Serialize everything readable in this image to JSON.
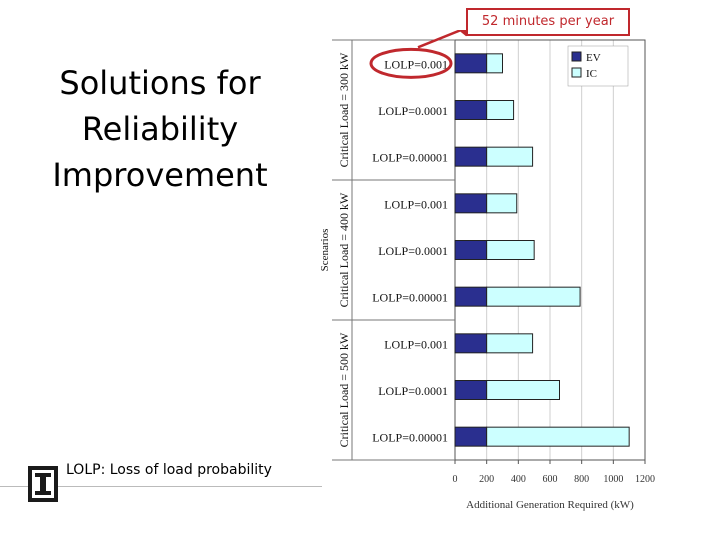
{
  "slide": {
    "title_lines": [
      "Solutions for",
      "Reliability",
      "Improvement"
    ],
    "footnote": "LOLP: Loss of load probability",
    "callout": "52 minutes per year",
    "colors": {
      "ev": "#2a2f8f",
      "ic": "#ccffff",
      "callout": "#c0282d"
    }
  },
  "chart_data": {
    "type": "bar",
    "orientation": "horizontal",
    "stacked": true,
    "xlabel": "Additional Generation Required (kW)",
    "ylabel": "Scenarios",
    "xlim": [
      0,
      1200
    ],
    "xticks": [
      0,
      200,
      400,
      600,
      800,
      1000,
      1200
    ],
    "legend": {
      "position": "top-right",
      "entries": [
        "EV",
        "IC"
      ]
    },
    "groups": [
      {
        "label": "Critical Load = 300 kW",
        "start": 0,
        "count": 3
      },
      {
        "label": "Critical Load = 400 kW",
        "start": 3,
        "count": 3
      },
      {
        "label": "Critical Load = 500 kW",
        "start": 6,
        "count": 3
      }
    ],
    "categories": [
      "LOLP=0.001",
      "LOLP=0.0001",
      "LOLP=0.00001",
      "LOLP=0.001",
      "LOLP=0.0001",
      "LOLP=0.00001",
      "LOLP=0.001",
      "LOLP=0.0001",
      "LOLP=0.00001"
    ],
    "series": [
      {
        "name": "EV",
        "values": [
          200,
          200,
          200,
          200,
          200,
          200,
          200,
          200,
          200
        ]
      },
      {
        "name": "IC",
        "values": [
          100,
          170,
          290,
          190,
          300,
          590,
          290,
          460,
          900
        ]
      }
    ]
  }
}
